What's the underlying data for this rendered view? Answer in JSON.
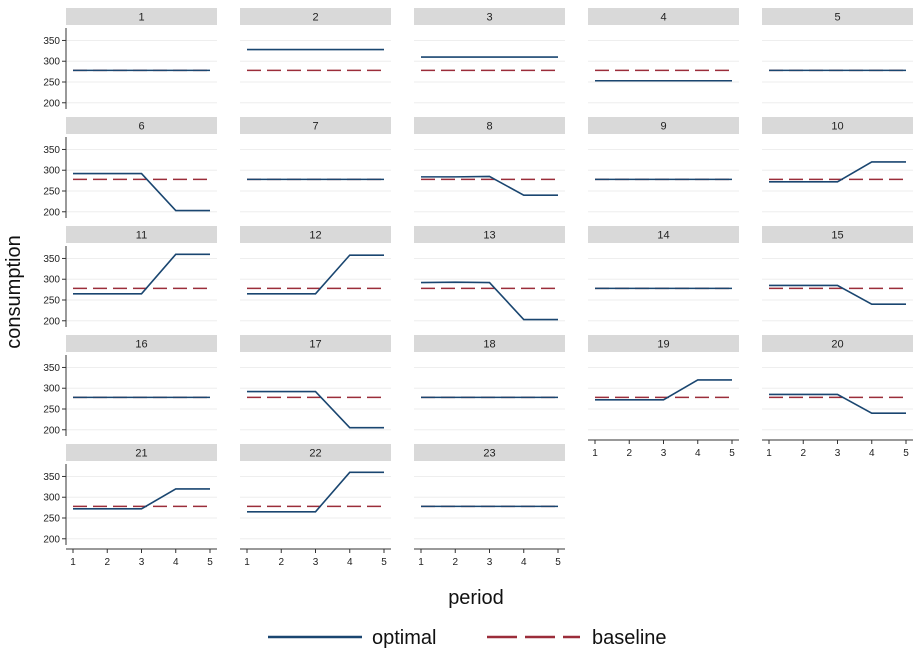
{
  "chart_data": {
    "type": "line",
    "xlabel": "period",
    "ylabel": "consumption",
    "x": [
      1,
      2,
      3,
      4,
      5
    ],
    "x_ticks": [
      "1",
      "2",
      "3",
      "4",
      "5"
    ],
    "y_ticks": [
      200,
      250,
      300,
      350
    ],
    "ylim": [
      185,
      380
    ],
    "grid": true,
    "legend_position": "bottom",
    "series_styles": [
      {
        "name": "optimal",
        "color": "#1a4670",
        "dash": "solid"
      },
      {
        "name": "baseline",
        "color": "#9b2d3a",
        "dash": "dashed"
      }
    ],
    "panels": [
      {
        "label": "1",
        "optimal": [
          278,
          278,
          278,
          278,
          278
        ],
        "baseline": [
          278,
          278,
          278,
          278,
          278
        ]
      },
      {
        "label": "2",
        "optimal": [
          328,
          328,
          328,
          328,
          328
        ],
        "baseline": [
          278,
          278,
          278,
          278,
          278
        ]
      },
      {
        "label": "3",
        "optimal": [
          310,
          310,
          310,
          310,
          310
        ],
        "baseline": [
          278,
          278,
          278,
          278,
          278
        ]
      },
      {
        "label": "4",
        "optimal": [
          253,
          253,
          253,
          253,
          253
        ],
        "baseline": [
          278,
          278,
          278,
          278,
          278
        ]
      },
      {
        "label": "5",
        "optimal": [
          278,
          278,
          278,
          278,
          278
        ],
        "baseline": [
          278,
          278,
          278,
          278,
          278
        ]
      },
      {
        "label": "6",
        "optimal": [
          292,
          292,
          292,
          203,
          203
        ],
        "baseline": [
          278,
          278,
          278,
          278,
          278
        ]
      },
      {
        "label": "7",
        "optimal": [
          278,
          278,
          278,
          278,
          278
        ],
        "baseline": [
          278,
          278,
          278,
          278,
          278
        ]
      },
      {
        "label": "8",
        "optimal": [
          284,
          284,
          285,
          240,
          240
        ],
        "baseline": [
          278,
          278,
          278,
          278,
          278
        ]
      },
      {
        "label": "9",
        "optimal": [
          278,
          278,
          278,
          278,
          278
        ],
        "baseline": [
          278,
          278,
          278,
          278,
          278
        ]
      },
      {
        "label": "10",
        "optimal": [
          272,
          272,
          272,
          320,
          320
        ],
        "baseline": [
          278,
          278,
          278,
          278,
          278
        ]
      },
      {
        "label": "11",
        "optimal": [
          265,
          265,
          265,
          360,
          360
        ],
        "baseline": [
          278,
          278,
          278,
          278,
          278
        ]
      },
      {
        "label": "12",
        "optimal": [
          265,
          265,
          265,
          358,
          358
        ],
        "baseline": [
          278,
          278,
          278,
          278,
          278
        ]
      },
      {
        "label": "13",
        "optimal": [
          292,
          293,
          292,
          203,
          203
        ],
        "baseline": [
          278,
          278,
          278,
          278,
          278
        ]
      },
      {
        "label": "14",
        "optimal": [
          278,
          278,
          278,
          278,
          278
        ],
        "baseline": [
          278,
          278,
          278,
          278,
          278
        ]
      },
      {
        "label": "15",
        "optimal": [
          285,
          285,
          285,
          240,
          240
        ],
        "baseline": [
          278,
          278,
          278,
          278,
          278
        ]
      },
      {
        "label": "16",
        "optimal": [
          278,
          278,
          278,
          278,
          278
        ],
        "baseline": [
          278,
          278,
          278,
          278,
          278
        ]
      },
      {
        "label": "17",
        "optimal": [
          292,
          292,
          292,
          205,
          205
        ],
        "baseline": [
          278,
          278,
          278,
          278,
          278
        ]
      },
      {
        "label": "18",
        "optimal": [
          278,
          278,
          278,
          278,
          278
        ],
        "baseline": [
          278,
          278,
          278,
          278,
          278
        ]
      },
      {
        "label": "19",
        "optimal": [
          272,
          272,
          272,
          320,
          320
        ],
        "baseline": [
          278,
          278,
          278,
          278,
          278
        ]
      },
      {
        "label": "20",
        "optimal": [
          285,
          285,
          285,
          240,
          240
        ],
        "baseline": [
          278,
          278,
          278,
          278,
          278
        ]
      },
      {
        "label": "21",
        "optimal": [
          272,
          272,
          272,
          320,
          320
        ],
        "baseline": [
          278,
          278,
          278,
          278,
          278
        ]
      },
      {
        "label": "22",
        "optimal": [
          265,
          265,
          265,
          360,
          360
        ],
        "baseline": [
          278,
          278,
          278,
          278,
          278
        ]
      },
      {
        "label": "23",
        "optimal": [
          278,
          278,
          278,
          278,
          278
        ],
        "baseline": [
          278,
          278,
          278,
          278,
          278
        ]
      }
    ]
  }
}
